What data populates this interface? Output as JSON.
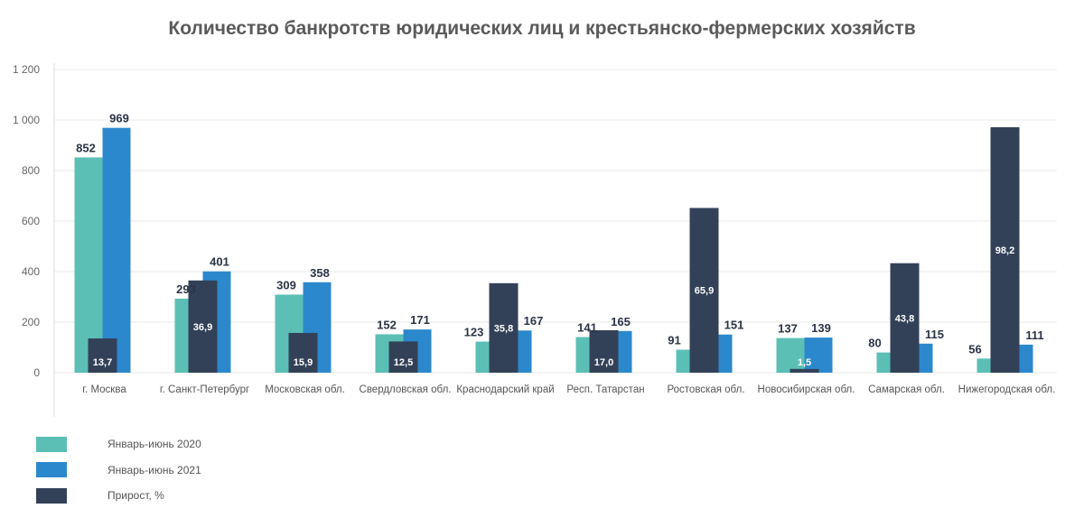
{
  "chart_data": {
    "type": "bar",
    "title": "Количество банкротств юридических лиц и крестьянско-фермерских хозяйств",
    "categories": [
      "г. Москва",
      "г. Санкт-Петербург",
      "Московская обл.",
      "Свердловская обл.",
      "Краснодарский край",
      "Респ. Татарстан",
      "Ростовская обл.",
      "Новосибирская обл.",
      "Самарская обл.",
      "Нижегородская обл."
    ],
    "series": [
      {
        "name": "Январь-июнь 2020",
        "values": [
          852,
          293,
          309,
          152,
          123,
          141,
          91,
          137,
          80,
          56
        ],
        "labels": [
          "852",
          "293",
          "309",
          "152",
          "123",
          "141",
          "91",
          "137",
          "80",
          "56"
        ],
        "color": "#5bbfb5"
      },
      {
        "name": "Январь-июнь 2021",
        "values": [
          969,
          401,
          358,
          171,
          167,
          165,
          151,
          139,
          115,
          111
        ],
        "labels": [
          "969",
          "401",
          "358",
          "171",
          "167",
          "165",
          "151",
          "139",
          "115",
          "111"
        ],
        "color": "#2c88cc"
      },
      {
        "name": "Прирост, %",
        "values": [
          13.7,
          36.9,
          15.9,
          12.5,
          35.8,
          17.0,
          65.9,
          1.5,
          43.8,
          98.2
        ],
        "labels": [
          "13,7",
          "36,9",
          "15,9",
          "12,5",
          "35,8",
          "17,0",
          "65,9",
          "1,5",
          "43,8",
          "98,2"
        ],
        "color": "#334158"
      }
    ],
    "y_ticks": [
      "0",
      "200",
      "400",
      "600",
      "800",
      "1 000",
      "1 200"
    ],
    "y_tick_values": [
      0,
      200,
      400,
      600,
      800,
      1000,
      1200
    ],
    "ylim": [
      0,
      1200
    ],
    "growth_ylim": [
      0,
      100
    ],
    "grid": true,
    "legend_position": "bottom-left"
  }
}
